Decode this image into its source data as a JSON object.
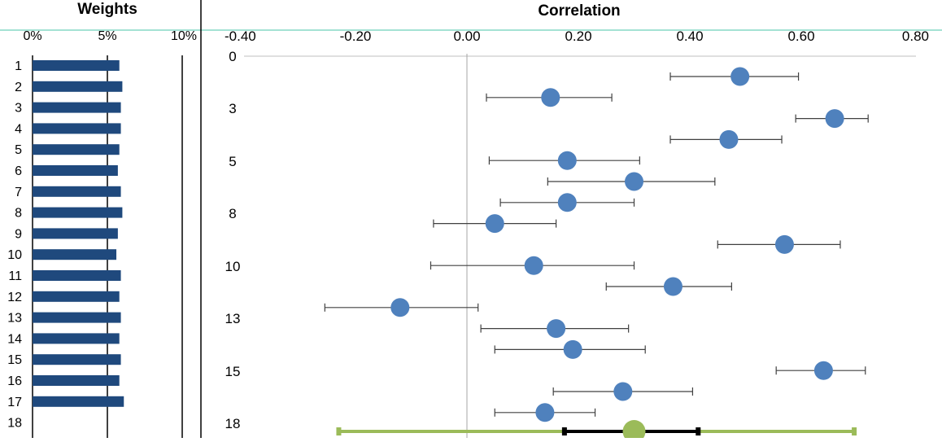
{
  "chart_data": [
    {
      "type": "bar",
      "orientation": "horizontal",
      "title": "Weights",
      "x_ticks": [
        "0%",
        "5%",
        "10%"
      ],
      "xlim": [
        0,
        10
      ],
      "categories": [
        "1",
        "2",
        "3",
        "4",
        "5",
        "6",
        "7",
        "8",
        "9",
        "10",
        "11",
        "12",
        "13",
        "14",
        "15",
        "16",
        "17",
        "18"
      ],
      "values": [
        5.8,
        6.0,
        5.9,
        5.9,
        5.8,
        5.7,
        5.9,
        6.0,
        5.7,
        5.6,
        5.9,
        5.8,
        5.9,
        5.8,
        5.9,
        5.8,
        6.1,
        null
      ],
      "bar_color": "#1f497d",
      "gridlines_at": [
        5,
        10
      ]
    },
    {
      "type": "scatter",
      "subtype": "forest-plot",
      "title": "Correlation",
      "x_ticks": [
        "-0.40",
        "-0.20",
        "0.00",
        "0.20",
        "0.40",
        "0.60",
        "0.80"
      ],
      "xlim": [
        -0.4,
        0.8
      ],
      "y_ticks": [
        "0",
        "3",
        "5",
        "8",
        "10",
        "13",
        "15",
        "18"
      ],
      "marker_color": "#4f81bd",
      "studies": [
        {
          "study": 1,
          "r": 0.49,
          "lo": 0.365,
          "hi": 0.595
        },
        {
          "study": 2,
          "r": 0.15,
          "lo": 0.035,
          "hi": 0.26
        },
        {
          "study": 3,
          "r": 0.66,
          "lo": 0.59,
          "hi": 0.72
        },
        {
          "study": 4,
          "r": 0.47,
          "lo": 0.365,
          "hi": 0.565
        },
        {
          "study": 5,
          "r": 0.18,
          "lo": 0.04,
          "hi": 0.31
        },
        {
          "study": 6,
          "r": 0.3,
          "lo": 0.145,
          "hi": 0.445
        },
        {
          "study": 7,
          "r": 0.18,
          "lo": 0.06,
          "hi": 0.3
        },
        {
          "study": 8,
          "r": 0.05,
          "lo": -0.06,
          "hi": 0.16
        },
        {
          "study": 9,
          "r": 0.57,
          "lo": 0.45,
          "hi": 0.67
        },
        {
          "study": 10,
          "r": 0.12,
          "lo": -0.065,
          "hi": 0.3
        },
        {
          "study": 11,
          "r": 0.37,
          "lo": 0.25,
          "hi": 0.475
        },
        {
          "study": 12,
          "r": -0.12,
          "lo": -0.255,
          "hi": 0.02
        },
        {
          "study": 13,
          "r": 0.16,
          "lo": 0.025,
          "hi": 0.29
        },
        {
          "study": 14,
          "r": 0.19,
          "lo": 0.05,
          "hi": 0.32
        },
        {
          "study": 15,
          "r": 0.64,
          "lo": 0.555,
          "hi": 0.715
        },
        {
          "study": 16,
          "r": 0.28,
          "lo": 0.155,
          "hi": 0.405
        },
        {
          "study": 17,
          "r": 0.14,
          "lo": 0.05,
          "hi": 0.23
        }
      ],
      "summary": {
        "row": 18,
        "r": 0.3,
        "ci": [
          0.175,
          0.415
        ],
        "pi": [
          -0.23,
          0.695
        ],
        "marker_color": "#9bbb59",
        "ci_color": "#000000",
        "pi_color": "#9bbb59"
      }
    }
  ],
  "colors": {
    "accent_line": "#49c6a8",
    "zero_line": "#a6a6a6",
    "errorbar": "#404040"
  }
}
